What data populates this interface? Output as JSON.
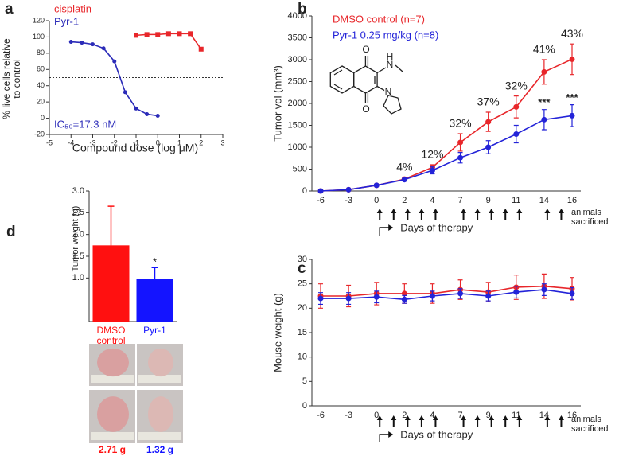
{
  "chart_data": [
    {
      "panel": "a",
      "type": "line",
      "x_label": "Compound dose (log μM)",
      "y_label": "% live cells relative to control",
      "xlim": [
        -5,
        3
      ],
      "xticks": [
        -5,
        -4,
        -3,
        -2,
        -1,
        0,
        1,
        2,
        3
      ],
      "ylim": [
        -20,
        120
      ],
      "yticks": [
        -20,
        0,
        20,
        40,
        60,
        80,
        100,
        120
      ],
      "reference_line": 50,
      "annotation": "IC₅₀=17.3 nM",
      "legend": "upper left",
      "series": [
        {
          "name": "cisplatin",
          "color": "#e8262a",
          "marker": "square",
          "x": [
            -1,
            -0.5,
            0,
            0.5,
            1,
            1.5,
            2
          ],
          "values": [
            102,
            103,
            103,
            104,
            104,
            104,
            85
          ]
        },
        {
          "name": "Pyr-1",
          "color": "#2b2bb8",
          "marker": "circle",
          "x": [
            -4,
            -3.5,
            -3,
            -2.5,
            -2,
            -1.5,
            -1,
            -0.5,
            0
          ],
          "values": [
            94,
            93,
            91,
            86,
            70,
            32,
            12,
            5,
            3
          ]
        }
      ]
    },
    {
      "panel": "b",
      "type": "line",
      "x_label": "Days of therapy",
      "y_label": "Tumor vol (mm³)",
      "end_label": "animals sacrificed",
      "categories": [
        "-6",
        "-3",
        "0",
        "2",
        "4",
        "7",
        "9",
        "11",
        "14",
        "16"
      ],
      "ylim": [
        0,
        4000
      ],
      "yticks": [
        0,
        500,
        1000,
        1500,
        2000,
        2500,
        3000,
        3500,
        4000
      ],
      "legend": "upper left",
      "series": [
        {
          "name": "DMSO control (n=7)",
          "color": "#e8262a",
          "marker": "circle",
          "values": [
            0,
            30,
            130,
            270,
            540,
            1110,
            1580,
            1920,
            2720,
            3010
          ],
          "errors": [
            0,
            0,
            20,
            40,
            60,
            200,
            220,
            250,
            280,
            350
          ]
        },
        {
          "name": "Pyr-1 0.25 mg/kg (n=8)",
          "color": "#2323d8",
          "marker": "circle",
          "values": [
            0,
            30,
            130,
            260,
            470,
            760,
            1000,
            1300,
            1630,
            1720
          ],
          "errors": [
            0,
            0,
            20,
            30,
            80,
            120,
            150,
            200,
            230,
            250
          ]
        }
      ],
      "inhibition": {
        "values": [
          null,
          null,
          null,
          4,
          12,
          32,
          37,
          32,
          41,
          43
        ],
        "value_labels": [
          null,
          null,
          null,
          "4%",
          "12%",
          "32%",
          "37%",
          "32%",
          "41%",
          "43%"
        ]
      },
      "significance": [
        null,
        null,
        null,
        null,
        null,
        null,
        null,
        null,
        "***",
        "***"
      ],
      "structure_atoms": [
        "O",
        "N",
        "H",
        "O",
        "N"
      ]
    },
    {
      "panel": "c",
      "type": "line",
      "x_label": "Days of therapy",
      "y_label": "Mouse weight (g)",
      "end_label": "animals sacrificed",
      "categories": [
        "-6",
        "-3",
        "0",
        "2",
        "4",
        "7",
        "9",
        "11",
        "14",
        "16"
      ],
      "ylim": [
        0,
        30
      ],
      "yticks": [
        0,
        5,
        10,
        15,
        20,
        25,
        30
      ],
      "series": [
        {
          "name": "DMSO control (n=7)",
          "color": "#e8262a",
          "marker": "circle",
          "values": [
            22.5,
            22.5,
            23,
            23,
            23,
            23.8,
            23.3,
            24.3,
            24.5,
            24
          ],
          "errors": [
            2.5,
            2.2,
            2.3,
            2,
            2,
            2,
            2,
            2.5,
            2.5,
            2.3
          ]
        },
        {
          "name": "Pyr-1 0.25 mg/kg (n=8)",
          "color": "#2323d8",
          "marker": "circle",
          "values": [
            22,
            22,
            22.3,
            21.8,
            22.5,
            23,
            22.5,
            23.3,
            23.8,
            23
          ],
          "errors": [
            1.2,
            1.2,
            1.2,
            0.8,
            1,
            1,
            1,
            1.2,
            1.2,
            1.2
          ]
        }
      ]
    },
    {
      "panel": "d",
      "type": "bar",
      "y_label": "Tumor weight (g)",
      "categories": [
        "DMSO control",
        "Pyr-1"
      ],
      "colors": [
        "#ff1010",
        "#1414ff"
      ],
      "values": [
        1.75,
        0.97
      ],
      "errors": [
        0.9,
        0.27
      ],
      "significance": [
        null,
        "*"
      ],
      "ylim": [
        0,
        3
      ],
      "yticks": [
        {
          "value": 1,
          "label": "1.0"
        },
        {
          "value": 1.5,
          "label": "1.5"
        },
        {
          "value": 2,
          "label": "2.0"
        },
        {
          "value": 2.5,
          "label": "2.5"
        },
        {
          "value": 3,
          "label": "3.0"
        }
      ],
      "photo_labels": [
        "2.71 g",
        "1.32 g"
      ]
    }
  ]
}
